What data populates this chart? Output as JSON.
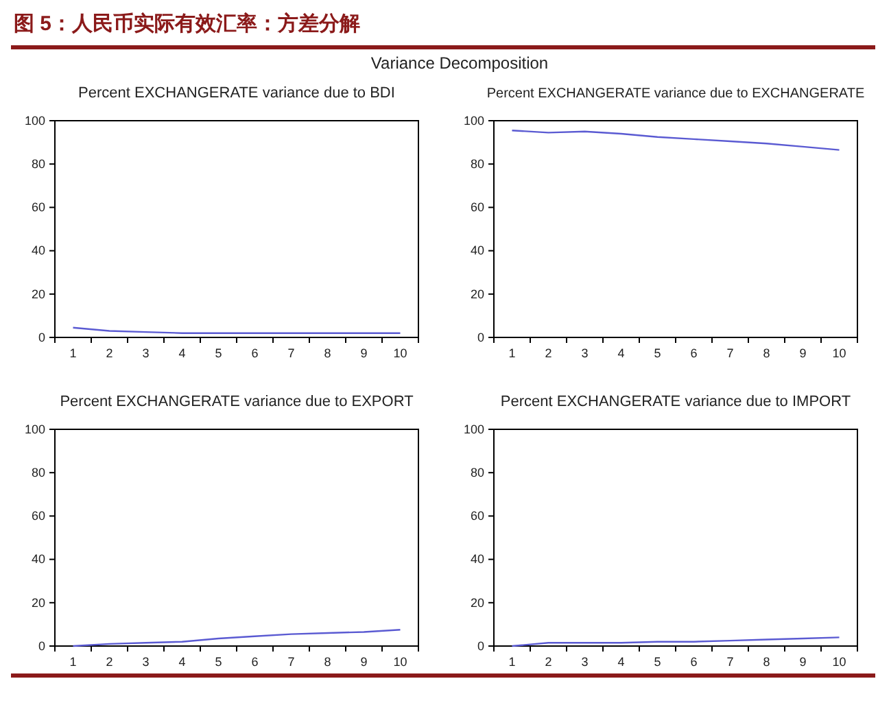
{
  "chart_data": [
    {
      "type": "line",
      "title": "Percent EXCHANGERATE variance due to BDI",
      "annotations": [
        "图 5：人民币实际有效汇率：方差分解",
        "Variance Decomposition"
      ],
      "categories": [
        "1",
        "2",
        "3",
        "4",
        "5",
        "6",
        "7",
        "8",
        "9",
        "10"
      ],
      "series": [
        {
          "color": "#5a5ad2",
          "values": [
            4.5,
            3,
            2.5,
            2,
            2,
            2,
            2,
            2,
            2,
            2
          ]
        }
      ],
      "ylim": [
        0,
        100
      ],
      "yticks": [
        0,
        20,
        40,
        60,
        80,
        100
      ],
      "grid": false,
      "marker": "none",
      "line_style": "solid"
    },
    {
      "type": "line",
      "title": "Percent EXCHANGERATE variance due to EXCHANGERATE",
      "categories": [
        "1",
        "2",
        "3",
        "4",
        "5",
        "6",
        "7",
        "8",
        "9",
        "10"
      ],
      "series": [
        {
          "color": "#5a5ad2",
          "values": [
            95.5,
            94.5,
            95,
            94,
            92.5,
            91.5,
            90.5,
            89.5,
            88,
            86.5
          ]
        }
      ],
      "ylim": [
        0,
        100
      ],
      "yticks": [
        0,
        20,
        40,
        60,
        80,
        100
      ],
      "grid": false,
      "marker": "none",
      "line_style": "solid"
    },
    {
      "type": "line",
      "title": "Percent EXCHANGERATE variance due to EXPORT",
      "categories": [
        "1",
        "2",
        "3",
        "4",
        "5",
        "6",
        "7",
        "8",
        "9",
        "10"
      ],
      "series": [
        {
          "color": "#5a5ad2",
          "values": [
            0,
            1,
            1.5,
            2,
            3.5,
            4.5,
            5.5,
            6,
            6.5,
            7.5
          ]
        }
      ],
      "ylim": [
        0,
        100
      ],
      "yticks": [
        0,
        20,
        40,
        60,
        80,
        100
      ],
      "grid": false,
      "marker": "none",
      "line_style": "solid"
    },
    {
      "type": "line",
      "title": "Percent EXCHANGERATE variance due to IMPORT",
      "categories": [
        "1",
        "2",
        "3",
        "4",
        "5",
        "6",
        "7",
        "8",
        "9",
        "10"
      ],
      "series": [
        {
          "color": "#5a5ad2",
          "values": [
            0,
            1.5,
            1.5,
            1.5,
            2,
            2,
            2.5,
            3,
            3.5,
            4
          ]
        }
      ],
      "ylim": [
        0,
        100
      ],
      "yticks": [
        0,
        20,
        40,
        60,
        80,
        100
      ],
      "grid": false,
      "marker": "none",
      "line_style": "solid"
    }
  ]
}
